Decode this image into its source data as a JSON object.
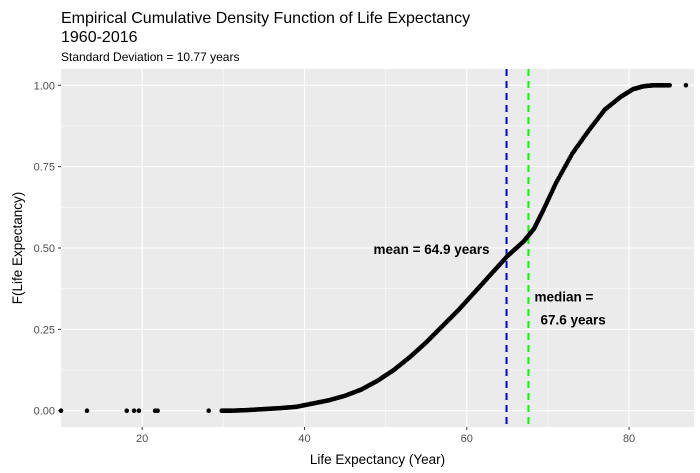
{
  "chart_data": {
    "type": "scatter",
    "title_line1": "Empirical Cumulative Density Function of Life Expectancy",
    "title_line2": "1960-2016",
    "subtitle": "Standard Deviation =  10.77 years",
    "xlabel": "Life Expectancy (Year)",
    "ylabel": "F(Life Expectancy)",
    "xlim": [
      10,
      88
    ],
    "ylim": [
      -0.05,
      1.05
    ],
    "x_ticks": [
      20,
      40,
      60,
      80
    ],
    "y_ticks": [
      0.0,
      0.25,
      0.5,
      0.75,
      1.0
    ],
    "y_tick_labels": [
      "0.00",
      "0.25",
      "0.50",
      "0.75",
      "1.00"
    ],
    "grid": true,
    "points": [
      [
        10.0,
        0.0
      ],
      [
        13.2,
        0.0
      ],
      [
        18.1,
        0.0
      ],
      [
        19.0,
        0.0
      ],
      [
        19.6,
        0.0
      ],
      [
        21.6,
        0.0
      ],
      [
        21.9,
        0.0
      ],
      [
        28.2,
        0.0
      ],
      [
        87.0,
        1.0
      ]
    ],
    "series": [
      {
        "name": "ECDF",
        "x": [
          29.8,
          31,
          33,
          35,
          37,
          39,
          41,
          43,
          45,
          47,
          49,
          51,
          53,
          55,
          57,
          59,
          61,
          63,
          65,
          67,
          68.3,
          69.5,
          71,
          73,
          75,
          77,
          79,
          80.5,
          81.8,
          83.0,
          84.0,
          85.0
        ],
        "y": [
          0.0,
          0.0,
          0.002,
          0.005,
          0.008,
          0.012,
          0.022,
          0.032,
          0.046,
          0.065,
          0.092,
          0.125,
          0.165,
          0.21,
          0.26,
          0.31,
          0.365,
          0.42,
          0.475,
          0.52,
          0.56,
          0.62,
          0.7,
          0.79,
          0.86,
          0.925,
          0.965,
          0.988,
          0.997,
          1.0,
          1.0,
          1.0
        ]
      }
    ],
    "reference_lines": [
      {
        "kind": "mean",
        "x": 64.9,
        "color": "#0000cd",
        "label": "mean = 64.9 years"
      },
      {
        "kind": "median",
        "x": 67.6,
        "color": "#00ff00",
        "label_line1": "median =",
        "label_line2": "67.6 years"
      }
    ],
    "colors": {
      "panel_background": "#ebebeb",
      "grid": "#ffffff",
      "points": "#000000"
    }
  }
}
